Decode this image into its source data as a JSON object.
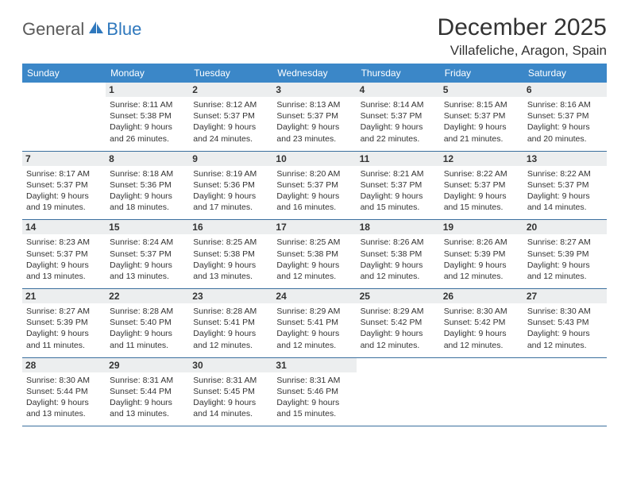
{
  "logo": {
    "word1": "General",
    "word2": "Blue",
    "icon_color": "#2f78bd"
  },
  "title": "December 2025",
  "location": "Villafeliche, Aragon, Spain",
  "colors": {
    "header_bg": "#3b87c8",
    "daynum_bg": "#eceeef",
    "rule": "#3b6f9e"
  },
  "dow": [
    "Sunday",
    "Monday",
    "Tuesday",
    "Wednesday",
    "Thursday",
    "Friday",
    "Saturday"
  ],
  "weeks": [
    [
      null,
      {
        "n": "1",
        "sr": "Sunrise: 8:11 AM",
        "ss": "Sunset: 5:38 PM",
        "d1": "Daylight: 9 hours",
        "d2": "and 26 minutes."
      },
      {
        "n": "2",
        "sr": "Sunrise: 8:12 AM",
        "ss": "Sunset: 5:37 PM",
        "d1": "Daylight: 9 hours",
        "d2": "and 24 minutes."
      },
      {
        "n": "3",
        "sr": "Sunrise: 8:13 AM",
        "ss": "Sunset: 5:37 PM",
        "d1": "Daylight: 9 hours",
        "d2": "and 23 minutes."
      },
      {
        "n": "4",
        "sr": "Sunrise: 8:14 AM",
        "ss": "Sunset: 5:37 PM",
        "d1": "Daylight: 9 hours",
        "d2": "and 22 minutes."
      },
      {
        "n": "5",
        "sr": "Sunrise: 8:15 AM",
        "ss": "Sunset: 5:37 PM",
        "d1": "Daylight: 9 hours",
        "d2": "and 21 minutes."
      },
      {
        "n": "6",
        "sr": "Sunrise: 8:16 AM",
        "ss": "Sunset: 5:37 PM",
        "d1": "Daylight: 9 hours",
        "d2": "and 20 minutes."
      }
    ],
    [
      {
        "n": "7",
        "sr": "Sunrise: 8:17 AM",
        "ss": "Sunset: 5:37 PM",
        "d1": "Daylight: 9 hours",
        "d2": "and 19 minutes."
      },
      {
        "n": "8",
        "sr": "Sunrise: 8:18 AM",
        "ss": "Sunset: 5:36 PM",
        "d1": "Daylight: 9 hours",
        "d2": "and 18 minutes."
      },
      {
        "n": "9",
        "sr": "Sunrise: 8:19 AM",
        "ss": "Sunset: 5:36 PM",
        "d1": "Daylight: 9 hours",
        "d2": "and 17 minutes."
      },
      {
        "n": "10",
        "sr": "Sunrise: 8:20 AM",
        "ss": "Sunset: 5:37 PM",
        "d1": "Daylight: 9 hours",
        "d2": "and 16 minutes."
      },
      {
        "n": "11",
        "sr": "Sunrise: 8:21 AM",
        "ss": "Sunset: 5:37 PM",
        "d1": "Daylight: 9 hours",
        "d2": "and 15 minutes."
      },
      {
        "n": "12",
        "sr": "Sunrise: 8:22 AM",
        "ss": "Sunset: 5:37 PM",
        "d1": "Daylight: 9 hours",
        "d2": "and 15 minutes."
      },
      {
        "n": "13",
        "sr": "Sunrise: 8:22 AM",
        "ss": "Sunset: 5:37 PM",
        "d1": "Daylight: 9 hours",
        "d2": "and 14 minutes."
      }
    ],
    [
      {
        "n": "14",
        "sr": "Sunrise: 8:23 AM",
        "ss": "Sunset: 5:37 PM",
        "d1": "Daylight: 9 hours",
        "d2": "and 13 minutes."
      },
      {
        "n": "15",
        "sr": "Sunrise: 8:24 AM",
        "ss": "Sunset: 5:37 PM",
        "d1": "Daylight: 9 hours",
        "d2": "and 13 minutes."
      },
      {
        "n": "16",
        "sr": "Sunrise: 8:25 AM",
        "ss": "Sunset: 5:38 PM",
        "d1": "Daylight: 9 hours",
        "d2": "and 13 minutes."
      },
      {
        "n": "17",
        "sr": "Sunrise: 8:25 AM",
        "ss": "Sunset: 5:38 PM",
        "d1": "Daylight: 9 hours",
        "d2": "and 12 minutes."
      },
      {
        "n": "18",
        "sr": "Sunrise: 8:26 AM",
        "ss": "Sunset: 5:38 PM",
        "d1": "Daylight: 9 hours",
        "d2": "and 12 minutes."
      },
      {
        "n": "19",
        "sr": "Sunrise: 8:26 AM",
        "ss": "Sunset: 5:39 PM",
        "d1": "Daylight: 9 hours",
        "d2": "and 12 minutes."
      },
      {
        "n": "20",
        "sr": "Sunrise: 8:27 AM",
        "ss": "Sunset: 5:39 PM",
        "d1": "Daylight: 9 hours",
        "d2": "and 12 minutes."
      }
    ],
    [
      {
        "n": "21",
        "sr": "Sunrise: 8:27 AM",
        "ss": "Sunset: 5:39 PM",
        "d1": "Daylight: 9 hours",
        "d2": "and 11 minutes."
      },
      {
        "n": "22",
        "sr": "Sunrise: 8:28 AM",
        "ss": "Sunset: 5:40 PM",
        "d1": "Daylight: 9 hours",
        "d2": "and 11 minutes."
      },
      {
        "n": "23",
        "sr": "Sunrise: 8:28 AM",
        "ss": "Sunset: 5:41 PM",
        "d1": "Daylight: 9 hours",
        "d2": "and 12 minutes."
      },
      {
        "n": "24",
        "sr": "Sunrise: 8:29 AM",
        "ss": "Sunset: 5:41 PM",
        "d1": "Daylight: 9 hours",
        "d2": "and 12 minutes."
      },
      {
        "n": "25",
        "sr": "Sunrise: 8:29 AM",
        "ss": "Sunset: 5:42 PM",
        "d1": "Daylight: 9 hours",
        "d2": "and 12 minutes."
      },
      {
        "n": "26",
        "sr": "Sunrise: 8:30 AM",
        "ss": "Sunset: 5:42 PM",
        "d1": "Daylight: 9 hours",
        "d2": "and 12 minutes."
      },
      {
        "n": "27",
        "sr": "Sunrise: 8:30 AM",
        "ss": "Sunset: 5:43 PM",
        "d1": "Daylight: 9 hours",
        "d2": "and 12 minutes."
      }
    ],
    [
      {
        "n": "28",
        "sr": "Sunrise: 8:30 AM",
        "ss": "Sunset: 5:44 PM",
        "d1": "Daylight: 9 hours",
        "d2": "and 13 minutes."
      },
      {
        "n": "29",
        "sr": "Sunrise: 8:31 AM",
        "ss": "Sunset: 5:44 PM",
        "d1": "Daylight: 9 hours",
        "d2": "and 13 minutes."
      },
      {
        "n": "30",
        "sr": "Sunrise: 8:31 AM",
        "ss": "Sunset: 5:45 PM",
        "d1": "Daylight: 9 hours",
        "d2": "and 14 minutes."
      },
      {
        "n": "31",
        "sr": "Sunrise: 8:31 AM",
        "ss": "Sunset: 5:46 PM",
        "d1": "Daylight: 9 hours",
        "d2": "and 15 minutes."
      },
      null,
      null,
      null
    ]
  ]
}
